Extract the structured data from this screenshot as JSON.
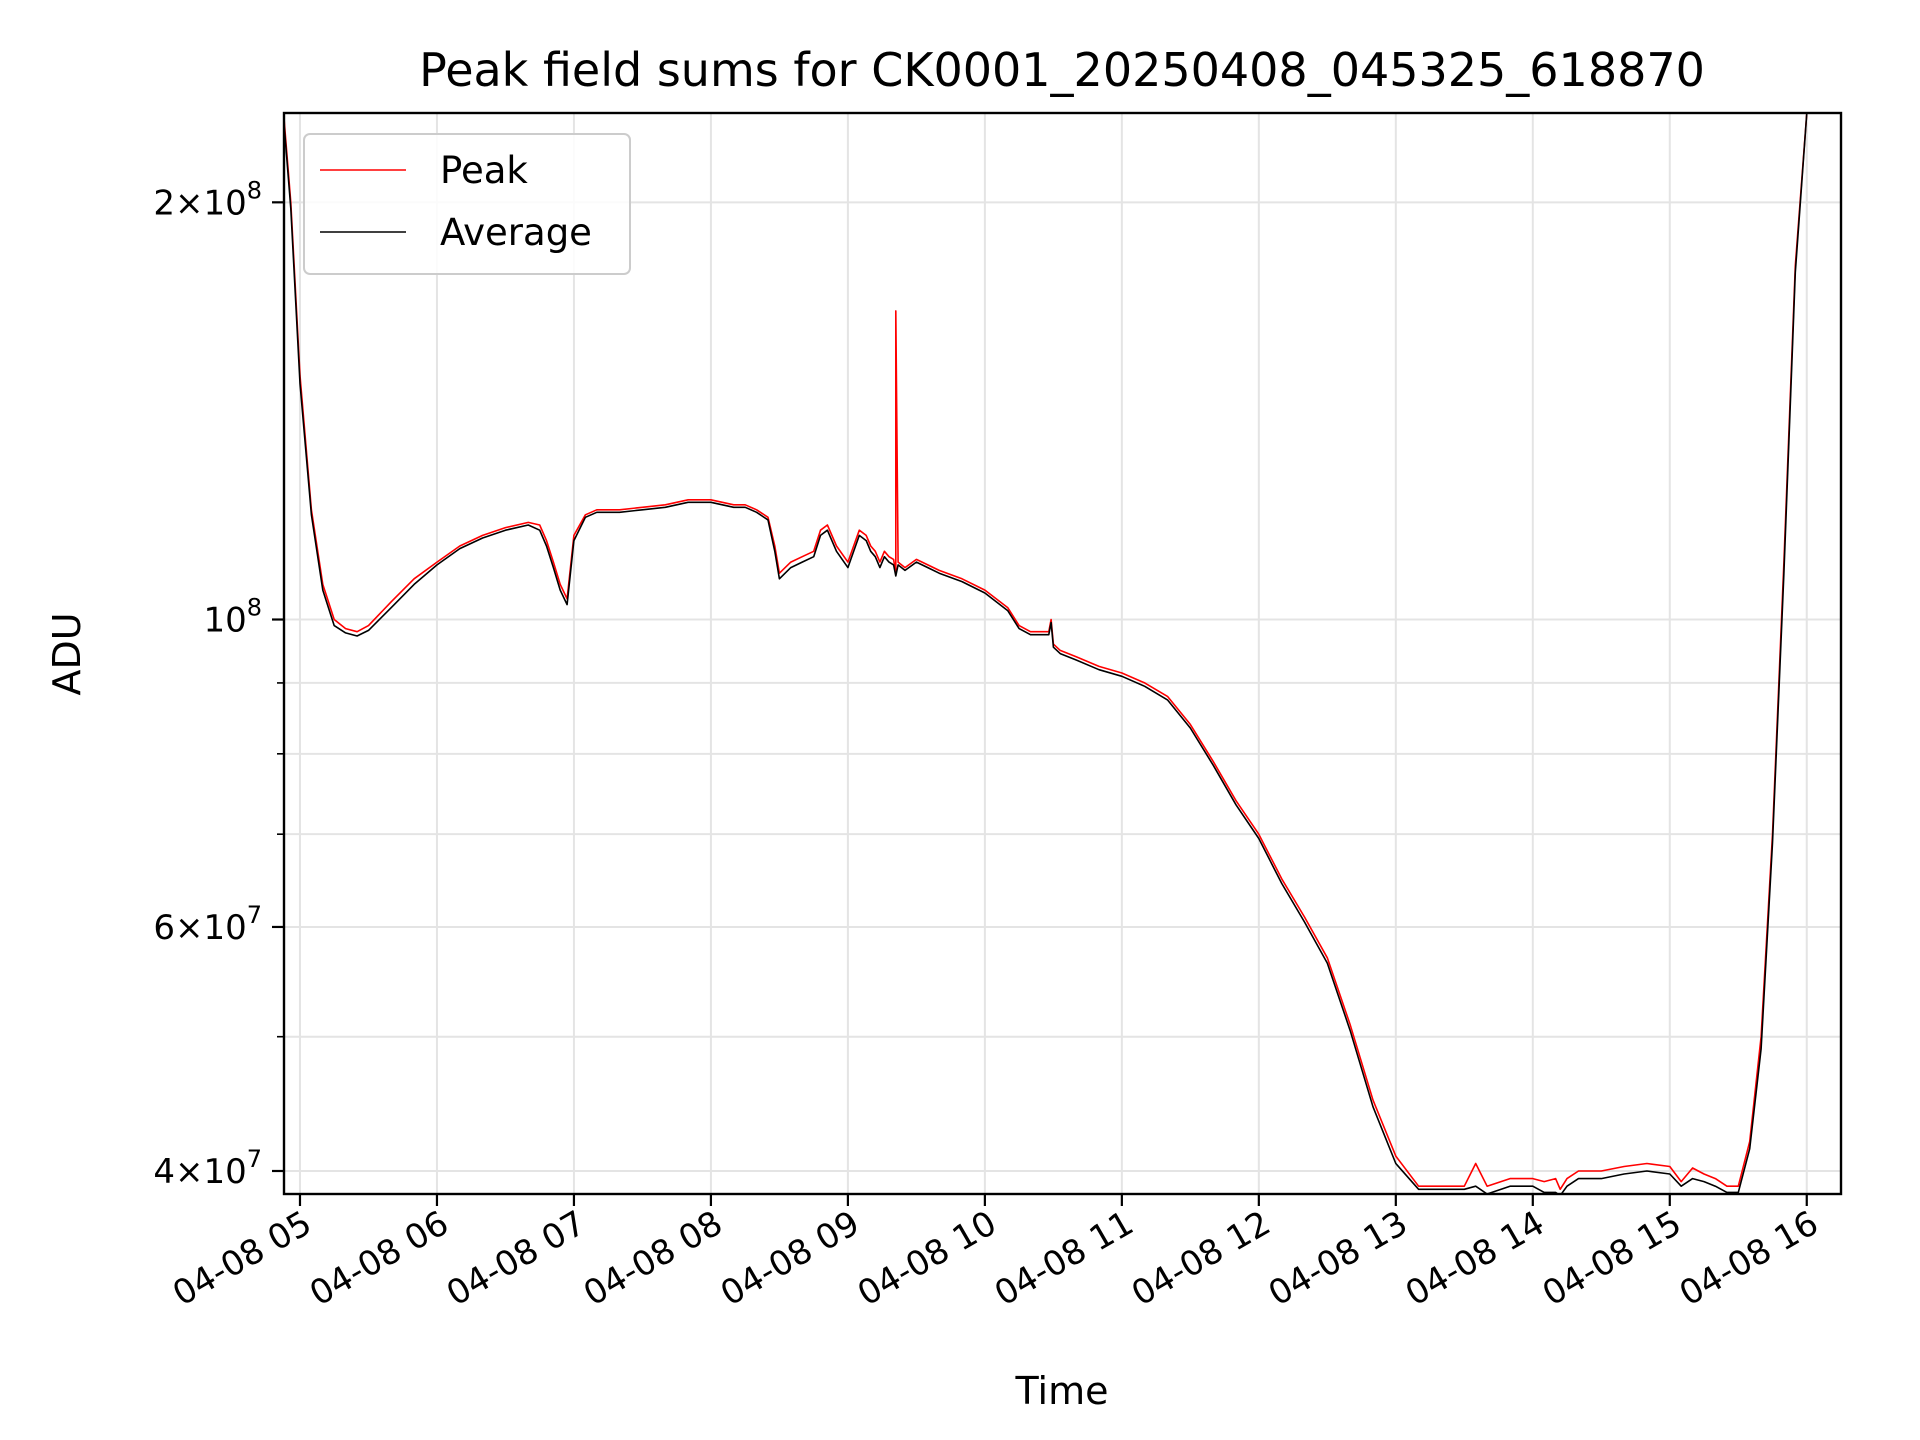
{
  "chart_data": {
    "type": "line",
    "title": "Peak field sums for CK0001_20250408_045325_618870",
    "xlabel": "Time",
    "ylabel": "ADU",
    "y_scale": "log",
    "grid": true,
    "legend_position": "top-left",
    "xlim": [
      "04-08 04:53",
      "04-08 16:15"
    ],
    "ylim": [
      38500000,
      232000000
    ],
    "x_ticks": [
      {
        "x": "04-08 05:00",
        "label": "04-08 05"
      },
      {
        "x": "04-08 06:00",
        "label": "04-08 06"
      },
      {
        "x": "04-08 07:00",
        "label": "04-08 07"
      },
      {
        "x": "04-08 08:00",
        "label": "04-08 08"
      },
      {
        "x": "04-08 09:00",
        "label": "04-08 09"
      },
      {
        "x": "04-08 10:00",
        "label": "04-08 10"
      },
      {
        "x": "04-08 11:00",
        "label": "04-08 11"
      },
      {
        "x": "04-08 12:00",
        "label": "04-08 12"
      },
      {
        "x": "04-08 13:00",
        "label": "04-08 13"
      },
      {
        "x": "04-08 14:00",
        "label": "04-08 14"
      },
      {
        "x": "04-08 15:00",
        "label": "04-08 15"
      },
      {
        "x": "04-08 16:00",
        "label": "04-08 16"
      }
    ],
    "y_ticks": [
      {
        "value": 40000000,
        "base": "4×10",
        "exp": "7"
      },
      {
        "value": 60000000,
        "base": "6×10",
        "exp": "7"
      },
      {
        "value": 100000000,
        "base": "10",
        "exp": "8"
      },
      {
        "value": 200000000,
        "base": "2×10",
        "exp": "8"
      }
    ],
    "y_minor_ticks": [
      50000000,
      70000000,
      80000000,
      90000000
    ],
    "series": [
      {
        "name": "Peak",
        "color": "#ff0000",
        "x": [
          "04-08 04:53",
          "04-08 04:56",
          "04-08 05:00",
          "04-08 05:05",
          "04-08 05:10",
          "04-08 05:15",
          "04-08 05:20",
          "04-08 05:25",
          "04-08 05:30",
          "04-08 05:40",
          "04-08 05:50",
          "04-08 06:00",
          "04-08 06:10",
          "04-08 06:20",
          "04-08 06:30",
          "04-08 06:40",
          "04-08 06:45",
          "04-08 06:48",
          "04-08 06:51",
          "04-08 06:54",
          "04-08 06:57",
          "04-08 07:00",
          "04-08 07:05",
          "04-08 07:10",
          "04-08 07:20",
          "04-08 07:30",
          "04-08 07:40",
          "04-08 07:50",
          "04-08 08:00",
          "04-08 08:10",
          "04-08 08:15",
          "04-08 08:20",
          "04-08 08:25",
          "04-08 08:28",
          "04-08 08:30",
          "04-08 08:35",
          "04-08 08:40",
          "04-08 08:45",
          "04-08 08:48",
          "04-08 08:51",
          "04-08 08:55",
          "04-08 09:00",
          "04-08 09:05",
          "04-08 09:08",
          "04-08 09:10",
          "04-08 09:12",
          "04-08 09:14",
          "04-08 09:16",
          "04-08 09:18",
          "04-08 09:20",
          "04-08 09:21",
          "04-08 09:21",
          "04-08 09:22",
          "04-08 09:25",
          "04-08 09:30",
          "04-08 09:35",
          "04-08 09:40",
          "04-08 09:50",
          "04-08 10:00",
          "04-08 10:10",
          "04-08 10:15",
          "04-08 10:20",
          "04-08 10:28",
          "04-08 10:29",
          "04-08 10:30",
          "04-08 10:33",
          "04-08 10:40",
          "04-08 10:50",
          "04-08 11:00",
          "04-08 11:10",
          "04-08 11:20",
          "04-08 11:30",
          "04-08 11:40",
          "04-08 11:50",
          "04-08 12:00",
          "04-08 12:10",
          "04-08 12:20",
          "04-08 12:30",
          "04-08 12:40",
          "04-08 12:50",
          "04-08 13:00",
          "04-08 13:10",
          "04-08 13:20",
          "04-08 13:30",
          "04-08 13:35",
          "04-08 13:40",
          "04-08 13:50",
          "04-08 14:00",
          "04-08 14:05",
          "04-08 14:10",
          "04-08 14:12",
          "04-08 14:15",
          "04-08 14:20",
          "04-08 14:30",
          "04-08 14:40",
          "04-08 14:50",
          "04-08 15:00",
          "04-08 15:05",
          "04-08 15:10",
          "04-08 15:15",
          "04-08 15:20",
          "04-08 15:25",
          "04-08 15:30",
          "04-08 15:35",
          "04-08 15:40",
          "04-08 15:45",
          "04-08 15:50",
          "04-08 15:55",
          "04-08 16:00"
        ],
        "y": [
          230000000,
          200000000,
          150000000,
          120000000,
          106000000,
          100000000,
          98500000,
          98000000,
          99000000,
          103000000,
          107000000,
          110000000,
          113000000,
          115000000,
          116500000,
          117500000,
          117000000,
          114000000,
          110000000,
          106000000,
          103500000,
          115000000,
          119000000,
          120000000,
          120000000,
          120500000,
          121000000,
          122000000,
          122000000,
          121000000,
          121000000,
          120000000,
          118500000,
          113000000,
          108000000,
          110000000,
          111000000,
          112000000,
          116000000,
          117000000,
          113000000,
          110000000,
          116000000,
          115000000,
          113000000,
          112000000,
          110000000,
          112000000,
          111000000,
          110500000,
          108000000,
          167000000,
          110000000,
          109000000,
          110500000,
          109500000,
          108500000,
          107000000,
          105000000,
          102000000,
          99000000,
          98000000,
          98000000,
          100000000,
          96000000,
          95000000,
          94000000,
          92500000,
          91500000,
          90000000,
          88000000,
          84000000,
          79000000,
          74000000,
          70000000,
          65000000,
          61000000,
          57000000,
          51000000,
          45000000,
          41000000,
          39000000,
          39000000,
          39000000,
          40500000,
          39000000,
          39500000,
          39500000,
          39300000,
          39500000,
          38800000,
          39500000,
          40000000,
          40000000,
          40300000,
          40500000,
          40300000,
          39300000,
          40200000,
          39800000,
          39500000,
          39000000,
          39000000,
          42000000,
          50000000,
          70000000,
          110000000,
          180000000,
          232000000
        ]
      },
      {
        "name": "Average",
        "color": "#000000",
        "x": [
          "04-08 04:53",
          "04-08 04:56",
          "04-08 05:00",
          "04-08 05:05",
          "04-08 05:10",
          "04-08 05:15",
          "04-08 05:20",
          "04-08 05:25",
          "04-08 05:30",
          "04-08 05:40",
          "04-08 05:50",
          "04-08 06:00",
          "04-08 06:10",
          "04-08 06:20",
          "04-08 06:30",
          "04-08 06:40",
          "04-08 06:45",
          "04-08 06:48",
          "04-08 06:51",
          "04-08 06:54",
          "04-08 06:57",
          "04-08 07:00",
          "04-08 07:05",
          "04-08 07:10",
          "04-08 07:20",
          "04-08 07:30",
          "04-08 07:40",
          "04-08 07:50",
          "04-08 08:00",
          "04-08 08:10",
          "04-08 08:15",
          "04-08 08:20",
          "04-08 08:25",
          "04-08 08:28",
          "04-08 08:30",
          "04-08 08:35",
          "04-08 08:40",
          "04-08 08:45",
          "04-08 08:48",
          "04-08 08:51",
          "04-08 08:55",
          "04-08 09:00",
          "04-08 09:05",
          "04-08 09:08",
          "04-08 09:10",
          "04-08 09:12",
          "04-08 09:14",
          "04-08 09:16",
          "04-08 09:18",
          "04-08 09:20",
          "04-08 09:21",
          "04-08 09:22",
          "04-08 09:25",
          "04-08 09:30",
          "04-08 09:35",
          "04-08 09:40",
          "04-08 09:50",
          "04-08 10:00",
          "04-08 10:10",
          "04-08 10:15",
          "04-08 10:20",
          "04-08 10:28",
          "04-08 10:29",
          "04-08 10:30",
          "04-08 10:33",
          "04-08 10:40",
          "04-08 10:50",
          "04-08 11:00",
          "04-08 11:10",
          "04-08 11:20",
          "04-08 11:30",
          "04-08 11:40",
          "04-08 11:50",
          "04-08 12:00",
          "04-08 12:10",
          "04-08 12:20",
          "04-08 12:30",
          "04-08 12:40",
          "04-08 12:50",
          "04-08 13:00",
          "04-08 13:10",
          "04-08 13:20",
          "04-08 13:30",
          "04-08 13:35",
          "04-08 13:40",
          "04-08 13:50",
          "04-08 14:00",
          "04-08 14:05",
          "04-08 14:10",
          "04-08 14:12",
          "04-08 14:15",
          "04-08 14:20",
          "04-08 14:30",
          "04-08 14:40",
          "04-08 14:50",
          "04-08 15:00",
          "04-08 15:05",
          "04-08 15:10",
          "04-08 15:15",
          "04-08 15:20",
          "04-08 15:25",
          "04-08 15:30",
          "04-08 15:35",
          "04-08 15:40",
          "04-08 15:45",
          "04-08 15:50",
          "04-08 15:55",
          "04-08 16:00"
        ],
        "y": [
          228000000,
          198000000,
          148000000,
          119000000,
          105000000,
          99000000,
          97800000,
          97300000,
          98200000,
          102000000,
          106000000,
          109500000,
          112500000,
          114500000,
          116000000,
          117000000,
          116000000,
          113000000,
          109000000,
          105000000,
          102500000,
          114000000,
          118500000,
          119500000,
          119500000,
          120000000,
          120500000,
          121500000,
          121500000,
          120500000,
          120500000,
          119500000,
          118000000,
          112000000,
          107000000,
          109000000,
          110000000,
          111000000,
          115000000,
          116000000,
          112000000,
          109000000,
          115000000,
          114000000,
          112000000,
          111000000,
          109000000,
          111000000,
          110000000,
          109500000,
          107500000,
          109500000,
          108500000,
          110000000,
          109000000,
          108000000,
          106500000,
          104500000,
          101500000,
          98500000,
          97500000,
          97500000,
          99500000,
          95500000,
          94500000,
          93500000,
          92000000,
          91000000,
          89500000,
          87500000,
          83500000,
          78500000,
          73500000,
          69500000,
          64500000,
          60500000,
          56500000,
          50500000,
          44500000,
          40500000,
          38800000,
          38800000,
          38800000,
          39000000,
          38500000,
          39000000,
          39000000,
          38600000,
          38600000,
          38400000,
          39000000,
          39500000,
          39500000,
          39800000,
          40000000,
          39800000,
          39000000,
          39500000,
          39300000,
          39000000,
          38600000,
          38600000,
          41500000,
          49000000,
          69000000,
          108000000,
          178000000,
          232000000
        ]
      }
    ]
  }
}
